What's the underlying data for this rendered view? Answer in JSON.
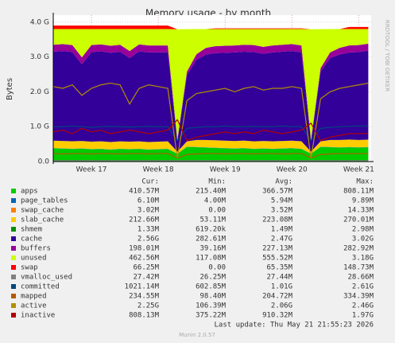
{
  "chart_data": {
    "type": "area",
    "title": "Memory usage - by month",
    "y_label": "Bytes",
    "side_label": "RRDTOOL / TOBI OETIKER",
    "ylim": [
      0,
      4.2
    ],
    "yticks": [
      {
        "value": 0,
        "label": "0.0"
      },
      {
        "value": 1,
        "label": "1.0 G"
      },
      {
        "value": 2,
        "label": "2.0 G"
      },
      {
        "value": 3,
        "label": "3.0 G"
      },
      {
        "value": 4,
        "label": "4.0 G"
      }
    ],
    "xlim": [
      0,
      33.3
    ],
    "xticks": [
      {
        "value": 4,
        "label": "Week 17"
      },
      {
        "value": 11,
        "label": "Week 18"
      },
      {
        "value": 18,
        "label": "Week 19"
      },
      {
        "value": 25,
        "label": "Week 20"
      },
      {
        "value": 32,
        "label": "Week 21"
      }
    ],
    "grid": true,
    "x": [
      0,
      1,
      2,
      3,
      4,
      5,
      6,
      7,
      8,
      9,
      10,
      11,
      12,
      13,
      14,
      15,
      16,
      17,
      18,
      19,
      20,
      21,
      22,
      23,
      24,
      25,
      26,
      27,
      28,
      29,
      30,
      31,
      32,
      33
    ],
    "series": [
      {
        "name": "apps",
        "color": "#00CC00",
        "style": "area",
        "values": [
          0.38,
          0.37,
          0.36,
          0.37,
          0.35,
          0.36,
          0.34,
          0.36,
          0.35,
          0.36,
          0.34,
          0.35,
          0.36,
          0.22,
          0.42,
          0.41,
          0.4,
          0.39,
          0.38,
          0.37,
          0.38,
          0.36,
          0.37,
          0.36,
          0.37,
          0.38,
          0.36,
          0.22,
          0.42,
          0.41,
          0.4,
          0.41,
          0.4,
          0.41
        ]
      },
      {
        "name": "page_tables",
        "color": "#0066B3",
        "style": "area",
        "values": [
          0.006,
          0.006,
          0.006,
          0.006,
          0.006,
          0.006,
          0.006,
          0.006,
          0.006,
          0.006,
          0.006,
          0.006,
          0.006,
          0.004,
          0.006,
          0.006,
          0.006,
          0.006,
          0.006,
          0.006,
          0.006,
          0.006,
          0.006,
          0.006,
          0.006,
          0.006,
          0.006,
          0.004,
          0.006,
          0.006,
          0.006,
          0.006,
          0.006,
          0.006
        ]
      },
      {
        "name": "swap_cache",
        "color": "#FF8000",
        "style": "area",
        "values": [
          0.003,
          0.003,
          0.004,
          0.003,
          0.003,
          0.004,
          0.003,
          0.003,
          0.004,
          0.003,
          0.003,
          0.004,
          0.003,
          0,
          0.002,
          0.003,
          0.003,
          0.004,
          0.003,
          0.003,
          0.004,
          0.003,
          0.003,
          0.004,
          0.003,
          0.003,
          0.004,
          0,
          0.002,
          0.003,
          0.003,
          0.004,
          0.003,
          0.003
        ]
      },
      {
        "name": "slab_cache",
        "color": "#FFCC00",
        "style": "area",
        "values": [
          0.21,
          0.21,
          0.21,
          0.21,
          0.21,
          0.21,
          0.21,
          0.21,
          0.21,
          0.21,
          0.21,
          0.21,
          0.21,
          0.06,
          0.15,
          0.2,
          0.21,
          0.21,
          0.21,
          0.21,
          0.21,
          0.21,
          0.21,
          0.21,
          0.21,
          0.21,
          0.21,
          0.06,
          0.15,
          0.2,
          0.21,
          0.21,
          0.21,
          0.21
        ]
      },
      {
        "name": "shmem",
        "color": "#008F00",
        "style": "area",
        "values": [
          0.001,
          0.001,
          0.001,
          0.001,
          0.001,
          0.001,
          0.001,
          0.001,
          0.001,
          0.001,
          0.001,
          0.001,
          0.001,
          0.001,
          0.001,
          0.001,
          0.001,
          0.001,
          0.001,
          0.001,
          0.001,
          0.001,
          0.001,
          0.001,
          0.001,
          0.001,
          0.001,
          0.001,
          0.001,
          0.001,
          0.001,
          0.001,
          0.001,
          0.001
        ]
      },
      {
        "name": "cache",
        "color": "#330099",
        "style": "area",
        "values": [
          2.55,
          2.58,
          2.56,
          2.2,
          2.57,
          2.58,
          2.56,
          2.57,
          2.4,
          2.58,
          2.57,
          2.56,
          2.55,
          0.3,
          1.9,
          2.3,
          2.45,
          2.5,
          2.52,
          2.54,
          2.55,
          2.56,
          2.5,
          2.55,
          2.56,
          2.57,
          2.55,
          0.3,
          2.0,
          2.35,
          2.45,
          2.5,
          2.52,
          2.55
        ]
      },
      {
        "name": "buffers",
        "color": "#990099",
        "style": "area",
        "values": [
          0.2,
          0.2,
          0.2,
          0.2,
          0.2,
          0.2,
          0.2,
          0.2,
          0.2,
          0.2,
          0.2,
          0.2,
          0.2,
          0.04,
          0.1,
          0.16,
          0.19,
          0.2,
          0.2,
          0.2,
          0.2,
          0.2,
          0.2,
          0.2,
          0.2,
          0.2,
          0.2,
          0.04,
          0.1,
          0.16,
          0.19,
          0.2,
          0.2,
          0.2
        ]
      },
      {
        "name": "unused",
        "color": "#CCFF00",
        "style": "area",
        "values": [
          0.45,
          0.43,
          0.46,
          0.81,
          0.46,
          0.44,
          0.48,
          0.45,
          0.63,
          0.44,
          0.47,
          0.47,
          0.47,
          3.17,
          1.22,
          0.72,
          0.54,
          0.49,
          0.48,
          0.47,
          0.45,
          0.46,
          0.51,
          0.47,
          0.45,
          0.43,
          0.47,
          3.17,
          1.12,
          0.67,
          0.54,
          0.47,
          0.46,
          0.42
        ]
      },
      {
        "name": "swap",
        "color": "#FF0000",
        "style": "area",
        "values": [
          0.1,
          0.1,
          0.1,
          0.1,
          0.1,
          0.1,
          0.1,
          0.1,
          0.1,
          0.1,
          0.1,
          0.1,
          0.1,
          0,
          0,
          0,
          0,
          0.02,
          0.02,
          0.02,
          0.02,
          0.02,
          0.02,
          0.02,
          0.02,
          0.02,
          0.02,
          0,
          0,
          0,
          0,
          0.06,
          0.06,
          0.06
        ]
      },
      {
        "name": "vmalloc_used",
        "color": "#808080",
        "style": "line",
        "values": [
          0.027,
          0.027,
          0.027,
          0.027,
          0.027,
          0.027,
          0.027,
          0.027,
          0.027,
          0.027,
          0.027,
          0.027,
          0.027,
          0.027,
          0.027,
          0.027,
          0.027,
          0.027,
          0.027,
          0.027,
          0.027,
          0.027,
          0.027,
          0.027,
          0.027,
          0.027,
          0.027,
          0.027,
          0.027,
          0.027,
          0.027,
          0.027,
          0.027,
          0.027
        ]
      },
      {
        "name": "committed",
        "color": "#00487D",
        "style": "line",
        "values": [
          1.0,
          1.0,
          1.02,
          1.0,
          0.98,
          1.0,
          1.01,
          1.0,
          0.99,
          1.0,
          1.01,
          1.0,
          1.0,
          0.6,
          0.95,
          0.98,
          1.0,
          1.0,
          1.02,
          1.0,
          1.0,
          1.01,
          1.0,
          1.0,
          1.02,
          1.0,
          1.0,
          0.6,
          0.95,
          0.98,
          1.0,
          1.01,
          1.02,
          1.02
        ]
      },
      {
        "name": "mapped",
        "color": "#B35A00",
        "style": "line",
        "values": [
          0.23,
          0.22,
          0.23,
          0.23,
          0.22,
          0.23,
          0.23,
          0.22,
          0.23,
          0.23,
          0.22,
          0.23,
          0.23,
          0.1,
          0.2,
          0.22,
          0.23,
          0.23,
          0.22,
          0.23,
          0.23,
          0.22,
          0.23,
          0.23,
          0.22,
          0.23,
          0.23,
          0.1,
          0.2,
          0.22,
          0.23,
          0.23,
          0.23,
          0.23
        ]
      },
      {
        "name": "active",
        "color": "#B38F00",
        "style": "line",
        "values": [
          2.15,
          2.1,
          2.2,
          1.9,
          2.1,
          2.2,
          2.25,
          2.2,
          1.65,
          2.1,
          2.2,
          2.15,
          2.1,
          0.1,
          1.75,
          1.95,
          2.0,
          2.05,
          2.1,
          2.0,
          2.1,
          2.15,
          2.05,
          2.1,
          2.1,
          2.15,
          2.1,
          0.1,
          1.8,
          2.0,
          2.1,
          2.15,
          2.2,
          2.25
        ]
      },
      {
        "name": "inactive",
        "color": "#B30000",
        "style": "line",
        "values": [
          0.85,
          0.9,
          0.8,
          0.95,
          0.85,
          0.9,
          0.8,
          0.85,
          0.9,
          0.85,
          0.8,
          0.85,
          0.9,
          1.2,
          0.6,
          0.7,
          0.75,
          0.8,
          0.85,
          0.8,
          0.85,
          0.8,
          0.9,
          0.85,
          0.8,
          0.85,
          0.9,
          1.1,
          0.6,
          0.7,
          0.75,
          0.8,
          0.8,
          0.81
        ]
      }
    ]
  },
  "legend_table": {
    "headers": [
      "Cur:",
      "Min:",
      "Avg:",
      "Max:"
    ],
    "rows": [
      [
        "410.57M",
        "215.40M",
        "366.57M",
        "808.11M"
      ],
      [
        "6.10M",
        "4.00M",
        "5.94M",
        "9.89M"
      ],
      [
        "3.02M",
        "0.00",
        "3.52M",
        "14.33M"
      ],
      [
        "212.66M",
        "53.11M",
        "223.08M",
        "270.01M"
      ],
      [
        "1.33M",
        "619.20k",
        "1.49M",
        "2.98M"
      ],
      [
        "2.56G",
        "282.61M",
        "2.47G",
        "3.02G"
      ],
      [
        "198.01M",
        "39.16M",
        "227.13M",
        "282.92M"
      ],
      [
        "462.56M",
        "117.08M",
        "555.52M",
        "3.18G"
      ],
      [
        "66.25M",
        "0.00",
        "65.35M",
        "148.73M"
      ],
      [
        "27.42M",
        "26.25M",
        "27.44M",
        "28.66M"
      ],
      [
        "1021.14M",
        "602.85M",
        "1.01G",
        "2.61G"
      ],
      [
        "234.55M",
        "98.40M",
        "204.72M",
        "334.39M"
      ],
      [
        "2.25G",
        "106.39M",
        "2.06G",
        "2.46G"
      ],
      [
        "808.13M",
        "375.22M",
        "910.32M",
        "1.97G"
      ]
    ],
    "last_update": "Last update: Thu May 21 21:55:23 2026",
    "footer": "Munin 2.0.57"
  }
}
